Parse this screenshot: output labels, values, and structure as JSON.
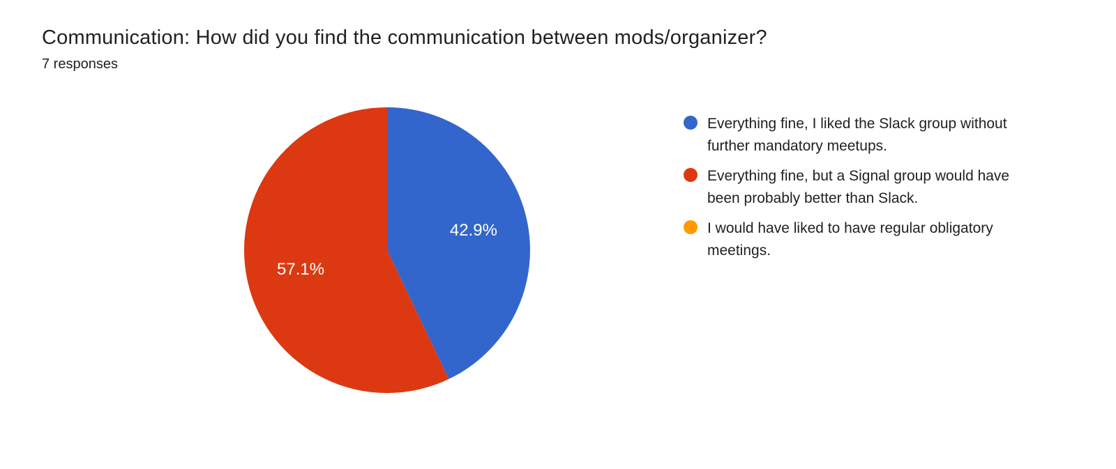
{
  "title": "Communication: How did you find the communication between mods/organizer?",
  "subtitle": "7 responses",
  "chart": {
    "type": "pie",
    "background_color": "#ffffff",
    "radius": 205,
    "title_fontsize": 29,
    "subtitle_fontsize": 20,
    "label_fontsize": 24,
    "label_color": "#ffffff",
    "legend_fontsize": 21,
    "text_color": "#202124",
    "slices": [
      {
        "label": "Everything fine, I liked the Slack group without further mandatory meetups.",
        "value": 3,
        "percent": 42.9,
        "percent_label": "42.9%",
        "color": "#3366cc"
      },
      {
        "label": "Everything fine, but a Signal group would have been probably better than Slack.",
        "value": 4,
        "percent": 57.1,
        "percent_label": "57.1%",
        "color": "#dc3912"
      },
      {
        "label": "I would have liked to have regular obligatory meetings.",
        "value": 0,
        "percent": 0,
        "percent_label": "",
        "color": "#ff9900"
      }
    ]
  }
}
